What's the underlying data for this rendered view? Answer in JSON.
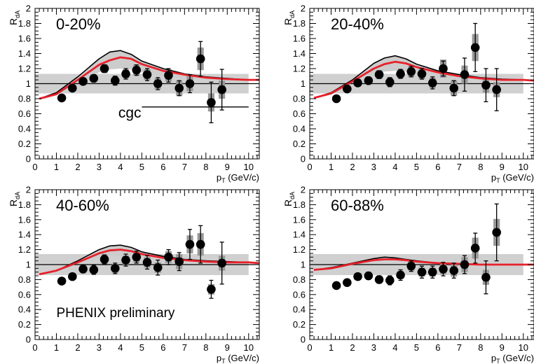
{
  "figure": {
    "x_unit_label": "(GeV/c)",
    "x_symbol": "p",
    "x_subscript": "T",
    "y_symbol": "R",
    "y_subscript": "dA",
    "preliminary_label": "PHENIX preliminary",
    "cgc_label": "cgc"
  },
  "colors": {
    "background": "#ffffff",
    "marker": "#000000",
    "syst_box": "#999999",
    "band_fill": "#cccccc",
    "norm_box": "#d0d0d0",
    "red_curve": "#e8202a",
    "black_curve": "#000000"
  },
  "chart_data": [
    {
      "type": "scatter",
      "title": "0-20%",
      "xlabel": "p_T (GeV/c)",
      "ylabel": "R_dA",
      "xlim": [
        0,
        10.5
      ],
      "ylim": [
        0,
        2
      ],
      "x_ticks": [
        "0",
        "1",
        "2",
        "3",
        "4",
        "5",
        "6",
        "7",
        "8",
        "9",
        "10"
      ],
      "y_ticks": [
        "0",
        "0.2",
        "0.4",
        "0.6",
        "0.8",
        "1",
        "1.2",
        "1.4",
        "1.6",
        "1.8",
        "2"
      ],
      "norm_box": [
        0.87,
        1.13
      ],
      "x": [
        1.25,
        1.75,
        2.25,
        2.75,
        3.25,
        3.75,
        4.25,
        4.75,
        5.25,
        5.75,
        6.25,
        6.75,
        7.25,
        7.75,
        8.25,
        8.75
      ],
      "y": [
        0.81,
        0.94,
        1.03,
        1.07,
        1.2,
        1.04,
        1.13,
        1.18,
        1.12,
        1.0,
        1.11,
        0.94,
        1.0,
        1.33,
        0.75,
        0.92
      ],
      "stat_err": [
        0.03,
        0.04,
        0.04,
        0.05,
        0.05,
        0.06,
        0.07,
        0.07,
        0.08,
        0.08,
        0.09,
        0.1,
        0.12,
        0.23,
        0.27,
        0.27
      ],
      "syst_err": [
        0.03,
        0.04,
        0.05,
        0.05,
        0.06,
        0.06,
        0.06,
        0.07,
        0.07,
        0.07,
        0.08,
        0.1,
        0.1,
        0.15,
        0.12,
        0.12
      ],
      "curves": {
        "upper": [
          [
            0.2,
            0.8
          ],
          [
            1,
            0.88
          ],
          [
            2,
            1.09
          ],
          [
            3,
            1.33
          ],
          [
            3.5,
            1.42
          ],
          [
            4,
            1.44
          ],
          [
            4.5,
            1.39
          ],
          [
            5,
            1.3
          ],
          [
            6,
            1.2
          ],
          [
            7,
            1.13
          ],
          [
            8,
            1.09
          ],
          [
            9,
            1.07
          ],
          [
            10,
            1.05
          ]
        ],
        "red": [
          [
            0.2,
            0.8
          ],
          [
            1,
            0.86
          ],
          [
            2,
            1.05
          ],
          [
            3,
            1.25
          ],
          [
            3.5,
            1.31
          ],
          [
            4,
            1.35
          ],
          [
            4.5,
            1.33
          ],
          [
            5,
            1.26
          ],
          [
            6,
            1.17
          ],
          [
            7,
            1.12
          ],
          [
            8,
            1.08
          ],
          [
            9,
            1.06
          ],
          [
            10,
            1.05
          ],
          [
            10.5,
            1.05
          ]
        ],
        "lower": [
          [
            0.2,
            0.8
          ],
          [
            1,
            0.85
          ],
          [
            2,
            1.01
          ],
          [
            3,
            1.15
          ],
          [
            3.5,
            1.19
          ],
          [
            4,
            1.2
          ],
          [
            4.5,
            1.19
          ],
          [
            5,
            1.15
          ],
          [
            6,
            1.1
          ],
          [
            7,
            1.07
          ],
          [
            8,
            1.05
          ],
          [
            9,
            1.04
          ],
          [
            10,
            1.04
          ]
        ],
        "cgc": [
          [
            5,
            0.69
          ],
          [
            10,
            0.69
          ]
        ]
      }
    },
    {
      "type": "scatter",
      "title": "20-40%",
      "xlabel": "p_T (GeV/c)",
      "ylabel": "R_dA",
      "xlim": [
        0,
        10.5
      ],
      "ylim": [
        0,
        2
      ],
      "x_ticks": [
        "0",
        "1",
        "2",
        "3",
        "4",
        "5",
        "6",
        "7",
        "8",
        "9",
        "10"
      ],
      "y_ticks": [
        "0",
        "0.2",
        "0.4",
        "0.6",
        "0.8",
        "1",
        "1.2",
        "1.4",
        "1.6",
        "1.8",
        "2"
      ],
      "norm_box": [
        0.87,
        1.13
      ],
      "x": [
        1.25,
        1.75,
        2.25,
        2.75,
        3.25,
        3.75,
        4.25,
        4.75,
        5.25,
        5.75,
        6.25,
        6.75,
        7.25,
        7.75,
        8.25,
        8.75
      ],
      "y": [
        0.8,
        0.93,
        1.01,
        1.04,
        1.12,
        1.02,
        1.13,
        1.16,
        1.13,
        1.01,
        1.2,
        0.94,
        1.12,
        1.48,
        0.98,
        0.92
      ],
      "stat_err": [
        0.03,
        0.04,
        0.04,
        0.05,
        0.05,
        0.06,
        0.06,
        0.07,
        0.07,
        0.08,
        0.1,
        0.1,
        0.22,
        0.32,
        0.22,
        0.28
      ],
      "syst_err": [
        0.03,
        0.04,
        0.05,
        0.05,
        0.06,
        0.06,
        0.06,
        0.07,
        0.07,
        0.07,
        0.12,
        0.1,
        0.12,
        0.18,
        0.1,
        0.1
      ],
      "curves": {
        "upper": [
          [
            0.2,
            0.81
          ],
          [
            1,
            0.88
          ],
          [
            2,
            1.05
          ],
          [
            3,
            1.27
          ],
          [
            3.5,
            1.34
          ],
          [
            4,
            1.37
          ],
          [
            4.5,
            1.33
          ],
          [
            5,
            1.26
          ],
          [
            6,
            1.17
          ],
          [
            7,
            1.12
          ],
          [
            8,
            1.08
          ],
          [
            9,
            1.06
          ],
          [
            10,
            1.05
          ]
        ],
        "red": [
          [
            0.2,
            0.81
          ],
          [
            1,
            0.87
          ],
          [
            2,
            1.03
          ],
          [
            3,
            1.2
          ],
          [
            3.5,
            1.26
          ],
          [
            4,
            1.29
          ],
          [
            4.5,
            1.27
          ],
          [
            5,
            1.22
          ],
          [
            6,
            1.15
          ],
          [
            7,
            1.1
          ],
          [
            8,
            1.07
          ],
          [
            9,
            1.05
          ],
          [
            10,
            1.05
          ],
          [
            10.5,
            1.04
          ]
        ],
        "lower": [
          [
            0.2,
            0.81
          ],
          [
            1,
            0.86
          ],
          [
            2,
            1.0
          ],
          [
            3,
            1.12
          ],
          [
            3.5,
            1.16
          ],
          [
            4,
            1.17
          ],
          [
            4.5,
            1.16
          ],
          [
            5,
            1.13
          ],
          [
            6,
            1.09
          ],
          [
            7,
            1.06
          ],
          [
            8,
            1.05
          ],
          [
            9,
            1.04
          ],
          [
            10,
            1.04
          ]
        ]
      }
    },
    {
      "type": "scatter",
      "title": "40-60%",
      "xlabel": "p_T (GeV/c)",
      "ylabel": "R_dA",
      "xlim": [
        0,
        10.5
      ],
      "ylim": [
        0,
        2
      ],
      "x_ticks": [
        "0",
        "1",
        "2",
        "3",
        "4",
        "5",
        "6",
        "7",
        "8",
        "9",
        "10"
      ],
      "y_ticks": [
        "0",
        "0.2",
        "0.4",
        "0.6",
        "0.8",
        "1",
        "1.2",
        "1.4",
        "1.6",
        "1.8",
        "2"
      ],
      "norm_box": [
        0.86,
        1.14
      ],
      "x": [
        1.25,
        1.75,
        2.25,
        2.75,
        3.25,
        3.75,
        4.25,
        4.75,
        5.25,
        5.75,
        6.25,
        6.75,
        7.25,
        7.75,
        8.25,
        8.75
      ],
      "y": [
        0.78,
        0.84,
        0.94,
        0.93,
        1.07,
        0.95,
        1.06,
        1.1,
        1.03,
        0.96,
        1.1,
        1.04,
        1.27,
        1.27,
        0.67,
        1.02
      ],
      "stat_err": [
        0.03,
        0.04,
        0.05,
        0.06,
        0.06,
        0.07,
        0.08,
        0.08,
        0.09,
        0.1,
        0.1,
        0.12,
        0.2,
        0.25,
        0.12,
        0.28
      ],
      "syst_err": [
        0.03,
        0.04,
        0.05,
        0.05,
        0.06,
        0.06,
        0.06,
        0.07,
        0.07,
        0.07,
        0.08,
        0.1,
        0.12,
        0.15,
        0.07,
        0.1
      ],
      "curves": {
        "upper": [
          [
            0.2,
            0.87
          ],
          [
            1,
            0.92
          ],
          [
            2,
            1.05
          ],
          [
            3,
            1.2
          ],
          [
            3.5,
            1.25
          ],
          [
            4,
            1.26
          ],
          [
            4.5,
            1.23
          ],
          [
            5,
            1.17
          ],
          [
            6,
            1.11
          ],
          [
            7,
            1.07
          ],
          [
            8,
            1.05
          ],
          [
            9,
            1.04
          ],
          [
            10,
            1.03
          ]
        ],
        "red": [
          [
            0.2,
            0.87
          ],
          [
            1,
            0.92
          ],
          [
            2,
            1.03
          ],
          [
            3,
            1.15
          ],
          [
            3.5,
            1.19
          ],
          [
            4,
            1.2
          ],
          [
            4.5,
            1.18
          ],
          [
            5,
            1.14
          ],
          [
            6,
            1.09
          ],
          [
            7,
            1.06
          ],
          [
            8,
            1.04
          ],
          [
            9,
            1.03
          ],
          [
            10,
            1.03
          ],
          [
            10.5,
            1.02
          ]
        ],
        "lower": [
          [
            0.2,
            0.87
          ],
          [
            1,
            0.91
          ],
          [
            2,
            1.01
          ],
          [
            3,
            1.09
          ],
          [
            3.5,
            1.12
          ],
          [
            4,
            1.12
          ],
          [
            4.5,
            1.11
          ],
          [
            5,
            1.09
          ],
          [
            6,
            1.06
          ],
          [
            7,
            1.04
          ],
          [
            8,
            1.03
          ],
          [
            9,
            1.02
          ],
          [
            10,
            1.02
          ]
        ]
      }
    },
    {
      "type": "scatter",
      "title": "60-88%",
      "xlabel": "p_T (GeV/c)",
      "ylabel": "R_dA",
      "xlim": [
        0,
        10.5
      ],
      "ylim": [
        0,
        2
      ],
      "x_ticks": [
        "0",
        "1",
        "2",
        "3",
        "4",
        "5",
        "6",
        "7",
        "8",
        "9",
        "10"
      ],
      "y_ticks": [
        "0",
        "0.2",
        "0.4",
        "0.6",
        "0.8",
        "1",
        "1.2",
        "1.4",
        "1.6",
        "1.8",
        "2"
      ],
      "norm_box": [
        0.86,
        1.14
      ],
      "x": [
        1.25,
        1.75,
        2.25,
        2.75,
        3.25,
        3.75,
        4.25,
        4.75,
        5.25,
        5.75,
        6.25,
        6.75,
        7.25,
        7.75,
        8.25,
        8.75
      ],
      "y": [
        0.72,
        0.76,
        0.84,
        0.85,
        0.8,
        0.79,
        0.86,
        0.98,
        0.9,
        0.9,
        0.94,
        0.92,
        1.0,
        1.22,
        0.83,
        1.43
      ],
      "stat_err": [
        0.03,
        0.03,
        0.04,
        0.05,
        0.05,
        0.06,
        0.07,
        0.07,
        0.08,
        0.08,
        0.09,
        0.1,
        0.12,
        0.2,
        0.22,
        0.38
      ],
      "syst_err": [
        0.03,
        0.03,
        0.04,
        0.04,
        0.05,
        0.05,
        0.05,
        0.06,
        0.06,
        0.06,
        0.07,
        0.08,
        0.1,
        0.14,
        0.1,
        0.18
      ],
      "curves": {
        "upper": [
          [
            0.2,
            0.93
          ],
          [
            1,
            0.96
          ],
          [
            2,
            1.02
          ],
          [
            3,
            1.08
          ],
          [
            3.5,
            1.1
          ],
          [
            4,
            1.09
          ],
          [
            4.5,
            1.07
          ],
          [
            5,
            1.05
          ],
          [
            6,
            1.02
          ],
          [
            7,
            1.01
          ],
          [
            8,
            1.0
          ],
          [
            9,
            1.0
          ],
          [
            10,
            1.0
          ]
        ],
        "red": [
          [
            0.2,
            0.93
          ],
          [
            1,
            0.95
          ],
          [
            2,
            1.01
          ],
          [
            3,
            1.06
          ],
          [
            3.5,
            1.07
          ],
          [
            4,
            1.07
          ],
          [
            4.5,
            1.06
          ],
          [
            5,
            1.04
          ],
          [
            6,
            1.02
          ],
          [
            7,
            1.01
          ],
          [
            8,
            1.0
          ],
          [
            9,
            1.0
          ],
          [
            10,
            1.0
          ],
          [
            10.5,
            1.0
          ]
        ],
        "lower": [
          [
            0.2,
            0.93
          ],
          [
            1,
            0.95
          ],
          [
            2,
            1.0
          ],
          [
            3,
            1.04
          ],
          [
            3.5,
            1.05
          ],
          [
            4,
            1.05
          ],
          [
            4.5,
            1.04
          ],
          [
            5,
            1.03
          ],
          [
            6,
            1.02
          ],
          [
            7,
            1.01
          ],
          [
            8,
            1.0
          ],
          [
            9,
            1.0
          ],
          [
            10,
            1.0
          ]
        ]
      }
    }
  ]
}
